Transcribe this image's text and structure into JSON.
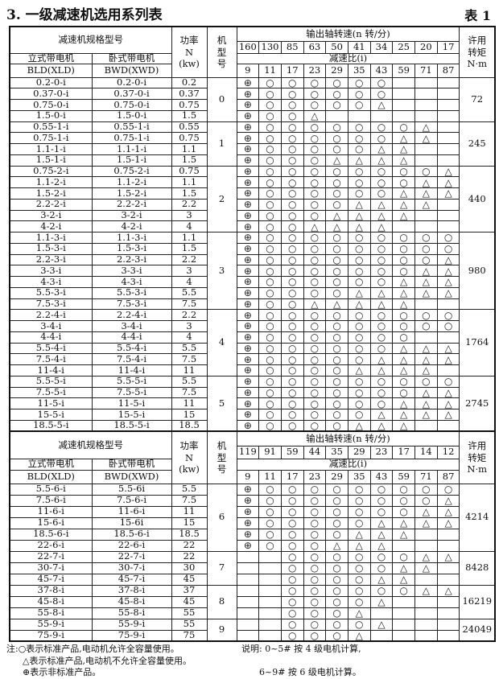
{
  "title": "3. 一级减速机选用系列表",
  "table_no": "表 1",
  "symbols": {
    "O": "○",
    "T": "△",
    "P": "⊕"
  },
  "symbol_names": {
    "O": "circle-icon",
    "T": "triangle-icon",
    "P": "circled-plus-icon"
  },
  "header": {
    "spec_label": "减速机规格型号",
    "vertical_label": "立式带电机",
    "vertical_code": "BLD(XLD)",
    "horizontal_label": "卧式带电机",
    "horizontal_code": "BWD(XWD)",
    "power_label": [
      "功率",
      "N",
      "(kw)"
    ],
    "frame_label": [
      "机",
      "型",
      "号"
    ],
    "speed_label": "输出轴转速(n 转/分)",
    "ratio_label": "减速比(i)",
    "ratios": [
      "9",
      "11",
      "17",
      "23",
      "29",
      "35",
      "43",
      "59",
      "71",
      "87"
    ],
    "torque_label": [
      "许用",
      "转矩",
      "N·m"
    ]
  },
  "sections": [
    {
      "speeds": [
        "160",
        "130",
        "85",
        "63",
        "50",
        "41",
        "34",
        "25",
        "20",
        "17"
      ],
      "groups": [
        {
          "frame": "0",
          "torque": "72",
          "rows": [
            {
              "v": "0.2-0-i",
              "h": "0.2-0-i",
              "p": "0.2",
              "marks": "POOOOOO---"
            },
            {
              "v": "0.37-0-i",
              "h": "0.37-0-i",
              "p": "0.37",
              "marks": "POOOOOO---"
            },
            {
              "v": "0.75-0-i",
              "h": "0.75-0-i",
              "p": "0.75",
              "marks": "POOOOOT---"
            },
            {
              "v": "1.5-0-i",
              "h": "1.5-0-i",
              "p": "1.5",
              "marks": "POOT------"
            }
          ]
        },
        {
          "frame": "1",
          "torque": "245",
          "rows": [
            {
              "v": "0.55-1-i",
              "h": "0.55-1-i",
              "p": "0.55",
              "marks": "POOOOOOOT-"
            },
            {
              "v": "0.75-1-i",
              "h": "0.75-1-i",
              "p": "0.75",
              "marks": "POOOOOOTT-"
            },
            {
              "v": "1.1-1-i",
              "h": "1.1-1-i",
              "p": "1.1",
              "marks": "POOOOOTT--"
            },
            {
              "v": "1.5-1-i",
              "h": "1.5-1-i",
              "p": "1.5",
              "marks": "POOOTTTT--"
            }
          ]
        },
        {
          "frame": "2",
          "torque": "440",
          "rows": [
            {
              "v": "0.75-2-i",
              "h": "0.75-2-i",
              "p": "0.75",
              "marks": "POOOOOOOOT"
            },
            {
              "v": "1.1-2-i",
              "h": "1.1-2-i",
              "p": "1.1",
              "marks": "POOOOOOOTT"
            },
            {
              "v": "1.5-2-i",
              "h": "1.5-2-i",
              "p": "1.5",
              "marks": "POOOOOOTTT"
            },
            {
              "v": "2.2-2-i",
              "h": "2.2-2-i",
              "p": "2.2",
              "marks": "POOOOTTTT-"
            },
            {
              "v": "3-2-i",
              "h": "3-2-i",
              "p": "3",
              "marks": "POOOTTTT--"
            },
            {
              "v": "4-2-i",
              "h": "4-2-i",
              "p": "4",
              "marks": "POOTTTT---"
            }
          ]
        },
        {
          "frame": "3",
          "torque": "980",
          "rows": [
            {
              "v": "1.1-3-i",
              "h": "1.1-3-i",
              "p": "1.1",
              "marks": "POOOOOOOOO"
            },
            {
              "v": "1.5-3-i",
              "h": "1.5-3-i",
              "p": "1.5",
              "marks": "POOOOOOOOO"
            },
            {
              "v": "2.2-3-i",
              "h": "2.2-3-i",
              "p": "2.2",
              "marks": "POOOOOOOOT"
            },
            {
              "v": "3-3-i",
              "h": "3-3-i",
              "p": "3",
              "marks": "POOOOOOOTT"
            },
            {
              "v": "4-3-i",
              "h": "4-3-i",
              "p": "4",
              "marks": "POOOOOOTTT"
            },
            {
              "v": "5.5-3-i",
              "h": "5.5-3-i",
              "p": "5.5",
              "marks": "POOOOTTTTT"
            },
            {
              "v": "7.5-3-i",
              "h": "7.5-3-i",
              "p": "7.5",
              "marks": "POOTTTTT--"
            }
          ]
        },
        {
          "frame": "4",
          "torque": "1764",
          "rows": [
            {
              "v": "2.2-4-i",
              "h": "2.2-4-i",
              "p": "2.2",
              "marks": "POOOOOOOOO"
            },
            {
              "v": "3-4-i",
              "h": "3-4-i",
              "p": "3",
              "marks": "POOOOOOOOO"
            },
            {
              "v": "4-4-i",
              "h": "4-4-i",
              "p": "4",
              "marks": "POOOOOOO--"
            },
            {
              "v": "5.5-4-i",
              "h": "5.5-4-i",
              "p": "5.5",
              "marks": "POOOOOOTTT"
            },
            {
              "v": "7.5-4-i",
              "h": "7.5-4-i",
              "p": "7.5",
              "marks": "POOOOOTTTT"
            },
            {
              "v": "11-4-i",
              "h": "11-4-i",
              "p": "11",
              "marks": "POOOOTTTT-"
            }
          ]
        },
        {
          "frame": "5",
          "torque": "2745",
          "rows": [
            {
              "v": "5.5-5-i",
              "h": "5.5-5-i",
              "p": "5.5",
              "marks": "POOOOOOOOO"
            },
            {
              "v": "7.5-5-i",
              "h": "7.5-5-i",
              "p": "7.5",
              "marks": "POOOOOOOTT"
            },
            {
              "v": "11-5-i",
              "h": "11-5-i",
              "p": "11",
              "marks": "POOOOOOTTT"
            },
            {
              "v": "15-5-i",
              "h": "15-5-i",
              "p": "15",
              "marks": "POOOOOTTTT"
            },
            {
              "v": "18.5-5-i",
              "h": "18.5-5-i",
              "p": "18.5",
              "marks": "POOOOTTT--"
            }
          ]
        }
      ]
    },
    {
      "speeds": [
        "119",
        "91",
        "59",
        "44",
        "35",
        "29",
        "23",
        "17",
        "14",
        "12"
      ],
      "groups": [
        {
          "frame": "6",
          "torque": "4214",
          "rows": [
            {
              "v": "5.5-6-i",
              "h": "5.5-6i",
              "p": "5.5",
              "marks": "POOOOOOOOO"
            },
            {
              "v": "7.5-6-i",
              "h": "7.5-6-i",
              "p": "7.5",
              "marks": "POOOOOOOOT"
            },
            {
              "v": "11-6-i",
              "h": "11-6-i",
              "p": "11",
              "marks": "POOOOOOOTT"
            },
            {
              "v": "15-6-i",
              "h": "15-6i",
              "p": "15",
              "marks": "POOOOOTTTT"
            },
            {
              "v": "18.5-6-i",
              "h": "18.5-6-i",
              "p": "18.5",
              "marks": "POOOOTTT--"
            },
            {
              "v": "22-6-i",
              "h": "22-6-i",
              "p": "22",
              "marks": "POOOTTT---"
            }
          ]
        },
        {
          "frame": "7",
          "torque": "8428",
          "rows": [
            {
              "v": "22-7-i",
              "h": "22-7-i",
              "p": "22",
              "marks": "--OOOOOOTT"
            },
            {
              "v": "30-7-i",
              "h": "30-7-i",
              "p": "30",
              "marks": "--OOOOOTT-"
            },
            {
              "v": "45-7-i",
              "h": "45-7-i",
              "p": "45",
              "marks": "--OOOOTT--"
            }
          ]
        },
        {
          "frame": "8",
          "torque": "16219",
          "rows": [
            {
              "v": "37-8-i",
              "h": "37-8-i",
              "p": "37",
              "marks": "--OOOOOOTT"
            },
            {
              "v": "45-8-i",
              "h": "45-8-i",
              "p": "45",
              "marks": "--OOOOT---"
            },
            {
              "v": "55-8-i",
              "h": "55-8-i",
              "p": "55",
              "marks": "--OOOT----"
            }
          ]
        },
        {
          "frame": "9",
          "torque": "24049",
          "rows": [
            {
              "v": "55-9-i",
              "h": "55-9-i",
              "p": "55",
              "marks": "--OOOOT---"
            },
            {
              "v": "75-9-i",
              "h": "75-9-i",
              "p": "75",
              "marks": "--OOOT----"
            }
          ]
        }
      ]
    }
  ],
  "notes": {
    "left": [
      "注:○表示标准产品,电动机允许全容量使用。",
      "△表示标准产品,电动机不允许全容量使用。",
      "⊕表示非标准产品。"
    ],
    "right": [
      "说明: 0~5# 按 4 级电机计算,",
      "6~9# 按 6 级电机计算。"
    ]
  }
}
